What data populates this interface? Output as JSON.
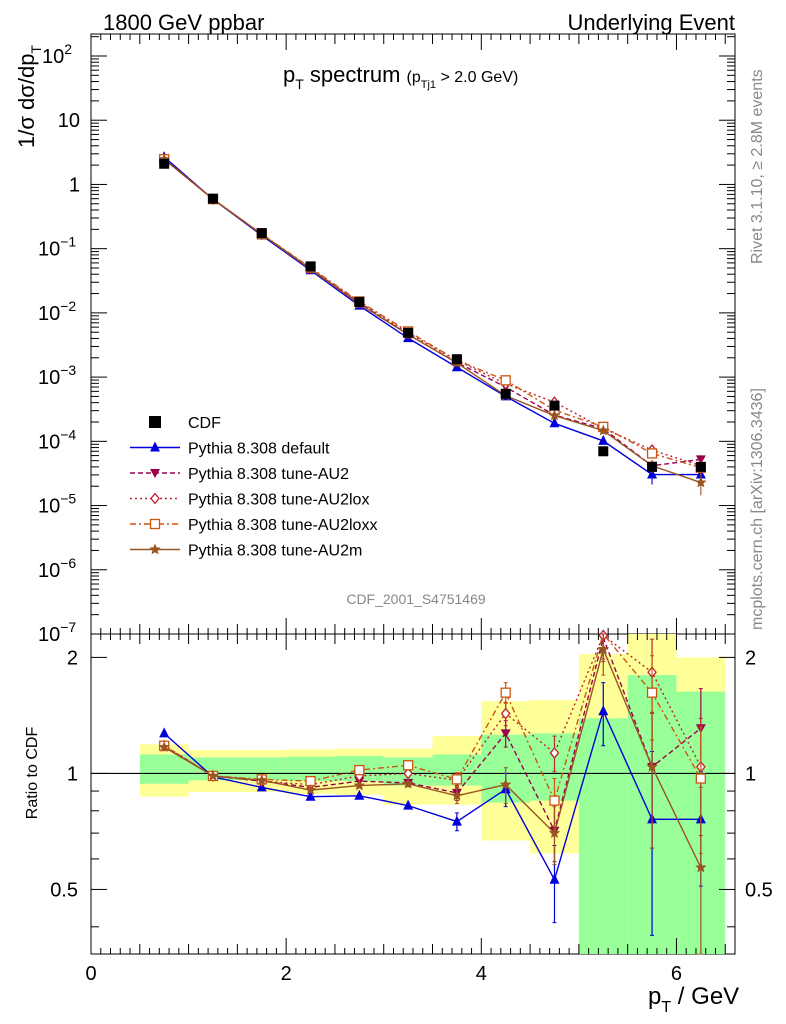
{
  "header": {
    "left": "1800 GeV ppbar",
    "right": "Underlying Event"
  },
  "side": {
    "rivet": "Rivet 3.1.10, ≥ 2.8M events",
    "mcplots": "mcplots.cern.ch [arXiv:1306.3436]"
  },
  "chart_data": {
    "type": "line",
    "title": {
      "main": "p",
      "main_sub": "T",
      "main_rest": " spectrum",
      "cut": "(p",
      "cut_sub": "Tj1",
      "cut_rest": " > 2.0 GeV)"
    },
    "analysis_id": "CDF_2001_S4751469",
    "ylabel_top": {
      "pre": "1/σ dσ/dp",
      "sub": "T"
    },
    "ylabel_bottom": "Ratio to CDF",
    "xlabel": {
      "pre": "p",
      "sub": "T",
      "rest": " / GeV"
    },
    "xlim": [
      0,
      6.6
    ],
    "ylim_top": [
      1e-07,
      220
    ],
    "ylim_ratio": [
      0.34,
      2.3
    ],
    "yscale_top": "log",
    "yscale_ratio": "log",
    "x_ticks": [
      0,
      2,
      4,
      6
    ],
    "y_ticks_top": [
      {
        "v": 100,
        "base": "10",
        "exp": "2"
      },
      {
        "v": 10,
        "base": "10",
        "exp": ""
      },
      {
        "v": 1,
        "base": "1",
        "exp": ""
      },
      {
        "v": 0.1,
        "base": "10",
        "exp": "−1"
      },
      {
        "v": 0.01,
        "base": "10",
        "exp": "−2"
      },
      {
        "v": 0.001,
        "base": "10",
        "exp": "−3"
      },
      {
        "v": 0.0001,
        "base": "10",
        "exp": "−4"
      },
      {
        "v": 1e-05,
        "base": "10",
        "exp": "−5"
      },
      {
        "v": 1e-06,
        "base": "10",
        "exp": "−6"
      },
      {
        "v": 1e-07,
        "base": "10",
        "exp": "−7"
      }
    ],
    "y_ticks_ratio": [
      {
        "v": 0.5,
        "label": "0.5"
      },
      {
        "v": 1,
        "label": "1"
      },
      {
        "v": 2,
        "label": "2"
      }
    ],
    "legend_position": "lower-left",
    "x": [
      0.75,
      1.25,
      1.75,
      2.25,
      2.75,
      3.25,
      3.75,
      4.25,
      4.75,
      5.25,
      5.75,
      6.25
    ],
    "data": {
      "name": "CDF",
      "values": [
        2.1,
        0.6,
        0.175,
        0.053,
        0.0148,
        0.0049,
        0.0019,
        0.00055,
        0.00036,
        7e-05,
        4e-05,
        4e-05
      ],
      "bins": [
        [
          0.5,
          1.0
        ],
        [
          1.0,
          1.5
        ],
        [
          1.5,
          2.0
        ],
        [
          2.0,
          2.5
        ],
        [
          2.5,
          3.0
        ],
        [
          3.0,
          3.5
        ],
        [
          3.5,
          4.0
        ],
        [
          4.0,
          4.5
        ],
        [
          4.5,
          5.0
        ],
        [
          5.0,
          5.5
        ],
        [
          5.5,
          6.0
        ],
        [
          6.0,
          6.5
        ]
      ],
      "band_stat_low": [
        0.94,
        0.96,
        0.96,
        0.955,
        0.955,
        0.93,
        0.93,
        0.84,
        0.85,
        0.29,
        0.29,
        0.34
      ],
      "band_stat_high": [
        1.12,
        1.1,
        1.1,
        1.105,
        1.11,
        1.1,
        1.12,
        1.26,
        1.27,
        1.39,
        1.8,
        1.63
      ],
      "band_tot_low": [
        0.87,
        0.895,
        0.895,
        0.885,
        0.88,
        0.83,
        0.83,
        0.67,
        0.62,
        0.29,
        0.29,
        0.34
      ],
      "band_tot_high": [
        1.19,
        1.15,
        1.15,
        1.155,
        1.16,
        1.16,
        1.25,
        1.54,
        1.55,
        2.04,
        2.3,
        2.0
      ]
    },
    "series": [
      {
        "name": "Pythia 8.308 default",
        "color": "#0000dd",
        "dash": "",
        "marker": "triangle-up",
        "ratio": [
          1.27,
          0.98,
          0.92,
          0.87,
          0.875,
          0.825,
          0.75,
          0.91,
          0.53,
          1.45,
          0.76,
          0.76
        ],
        "err": [
          0.02,
          0.01,
          0.01,
          0.012,
          0.015,
          0.025,
          0.04,
          0.09,
          0.12,
          0.27,
          0.38,
          0.25
        ]
      },
      {
        "name": "Pythia 8.308 tune-AU2",
        "color": "#99004d",
        "dash": "5,3",
        "marker": "triangle-down",
        "ratio": [
          1.18,
          0.985,
          0.955,
          0.92,
          0.955,
          0.945,
          0.89,
          1.27,
          0.71,
          2.25,
          1.04,
          1.31
        ],
        "err": [
          0.02,
          0.01,
          0.01,
          0.012,
          0.015,
          0.025,
          0.04,
          0.1,
          0.12,
          0.3,
          0.4,
          0.35
        ]
      },
      {
        "name": "Pythia 8.308 tune-AU2lox",
        "color": "#bb2233",
        "dash": "2,3",
        "marker": "diamond-open",
        "ratio": [
          1.18,
          0.985,
          0.955,
          0.935,
          0.985,
          1.0,
          0.96,
          1.43,
          1.13,
          2.28,
          1.83,
          1.04
        ],
        "err": [
          0.02,
          0.01,
          0.01,
          0.012,
          0.015,
          0.025,
          0.04,
          0.1,
          0.12,
          0.3,
          0.4,
          0.35
        ]
      },
      {
        "name": "Pythia 8.308 tune-AU2loxx",
        "color": "#cc5511",
        "dash": "6,3,2,3",
        "marker": "square-open",
        "ratio": [
          1.18,
          0.985,
          0.965,
          0.955,
          1.02,
          1.05,
          0.965,
          1.62,
          0.85,
          2.4,
          1.62,
          0.97
        ],
        "err": [
          0.02,
          0.01,
          0.01,
          0.012,
          0.015,
          0.025,
          0.04,
          0.1,
          0.12,
          0.3,
          0.4,
          0.35
        ]
      },
      {
        "name": "Pythia 8.308 tune-AU2m",
        "color": "#995522",
        "dash": "",
        "marker": "star",
        "ratio": [
          1.17,
          0.985,
          0.96,
          0.905,
          0.93,
          0.94,
          0.875,
          0.935,
          0.7,
          2.1,
          1.04,
          0.57
        ],
        "err": [
          0.02,
          0.01,
          0.01,
          0.012,
          0.015,
          0.025,
          0.04,
          0.1,
          0.12,
          0.3,
          0.4,
          0.35
        ]
      }
    ]
  }
}
